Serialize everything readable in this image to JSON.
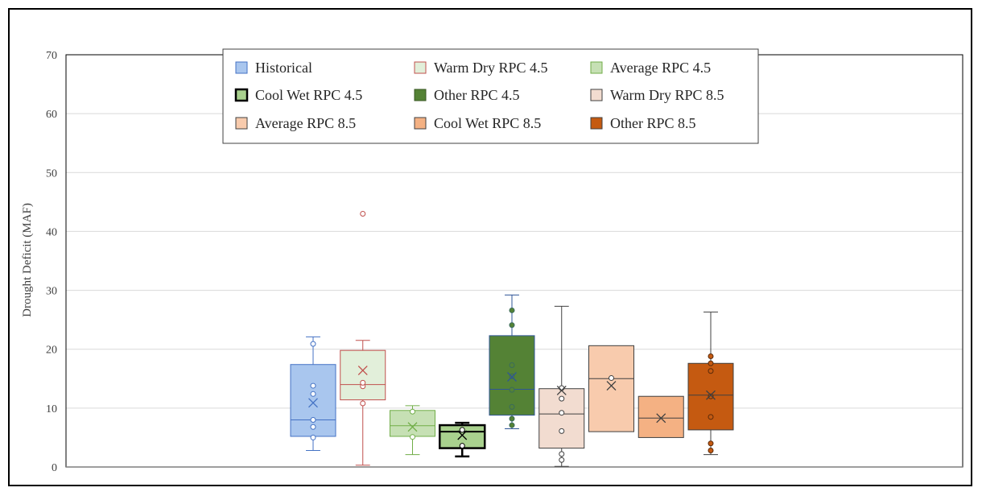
{
  "chart_data": {
    "type": "box",
    "title": "",
    "xlabel": "",
    "ylabel": "Drought Deficit (MAF)",
    "ylim": [
      0,
      70
    ],
    "yticks": [
      0,
      10,
      20,
      30,
      40,
      50,
      60,
      70
    ],
    "ytick_labels": [
      "0",
      "10",
      "20",
      "30",
      "40",
      "50",
      "60",
      "70"
    ],
    "grid": true,
    "legend_position": "top-center",
    "series": [
      {
        "name": "Historical",
        "fill": "#a9c6ee",
        "stroke": "#4472c4",
        "whisker_low": 2.8,
        "q1": 5.2,
        "median": 8.0,
        "q3": 17.4,
        "whisker_high": 22.1,
        "mean": 10.9,
        "points": [
          5.0,
          6.8,
          8.0,
          12.4,
          13.8,
          20.9
        ],
        "outliers": []
      },
      {
        "name": "Warm Dry RPC 4.5",
        "fill": "#e2efda",
        "stroke": "#c0504d",
        "whisker_low": 0.3,
        "q1": 11.4,
        "median": 14.0,
        "q3": 19.8,
        "whisker_high": 21.5,
        "mean": 16.4,
        "points": [
          10.8,
          13.7,
          14.3
        ],
        "outliers": [
          43.0
        ]
      },
      {
        "name": "Average RPC 4.5",
        "fill": "#c6e0b4",
        "stroke": "#70ad47",
        "whisker_low": 2.1,
        "q1": 5.2,
        "median": 7.0,
        "q3": 9.6,
        "whisker_high": 10.4,
        "mean": 6.8,
        "points": [
          5.1,
          9.4
        ],
        "outliers": []
      },
      {
        "name": "Cool Wet RPC 4.5",
        "fill": "#a9d18e",
        "stroke": "#000000",
        "whisker_low": 1.8,
        "q1": 3.2,
        "median": 6.0,
        "q3": 7.1,
        "whisker_high": 7.5,
        "mean": 5.4,
        "points": [
          3.6,
          6.3
        ],
        "outliers": []
      },
      {
        "name": "Other RPC 4.5",
        "fill": "#548235",
        "stroke": "#2f5597",
        "whisker_low": 6.5,
        "q1": 8.8,
        "median": 13.2,
        "q3": 22.3,
        "whisker_high": 29.2,
        "mean": 15.3,
        "points": [
          7.1,
          8.2,
          10.2,
          13.1,
          15.4,
          17.3,
          24.1,
          26.6
        ],
        "outliers": []
      },
      {
        "name": "Warm Dry RPC 8.5",
        "fill": "#f2dcd0",
        "stroke": "#404040",
        "whisker_low": 0.1,
        "q1": 3.2,
        "median": 9.0,
        "q3": 13.3,
        "whisker_high": 27.3,
        "mean": 13.0,
        "points": [
          1.2,
          2.2,
          6.1,
          9.2,
          11.6,
          13.4
        ],
        "outliers": []
      },
      {
        "name": "Average RPC 8.5",
        "fill": "#f8cbad",
        "stroke": "#404040",
        "whisker_low": 6.0,
        "q1": 6.0,
        "median": 15.0,
        "q3": 20.6,
        "whisker_high": 20.6,
        "mean": 13.8,
        "points": [
          15.1
        ],
        "outliers": []
      },
      {
        "name": "Cool Wet RPC 8.5",
        "fill": "#f4b183",
        "stroke": "#404040",
        "whisker_low": 5.0,
        "q1": 5.0,
        "median": 8.3,
        "q3": 12.0,
        "whisker_high": 12.0,
        "mean": 8.3,
        "points": [],
        "outliers": []
      },
      {
        "name": "Other RPC 8.5",
        "fill": "#c55a11",
        "stroke": "#404040",
        "whisker_low": 2.1,
        "q1": 6.3,
        "median": 12.2,
        "q3": 17.6,
        "whisker_high": 26.3,
        "mean": 12.2,
        "points": [
          2.8,
          4.0,
          8.5,
          12.0,
          16.3,
          17.6,
          18.8
        ],
        "outliers": []
      }
    ]
  },
  "legend": {
    "items": [
      {
        "label": "Historical",
        "fill": "#a9c6ee",
        "stroke": "#4472c4",
        "bold_border": false
      },
      {
        "label": "Warm Dry RPC 4.5",
        "fill": "#e2efda",
        "stroke": "#c0504d",
        "bold_border": false
      },
      {
        "label": "Average RPC 4.5",
        "fill": "#c6e0b4",
        "stroke": "#70ad47",
        "bold_border": false
      },
      {
        "label": "Cool Wet RPC 4.5",
        "fill": "#a9d18e",
        "stroke": "#000000",
        "bold_border": true
      },
      {
        "label": "Other RPC 4.5",
        "fill": "#548235",
        "stroke": "#385723",
        "bold_border": false
      },
      {
        "label": "Warm Dry RPC 8.5",
        "fill": "#f2dcd0",
        "stroke": "#404040",
        "bold_border": false
      },
      {
        "label": "Average RPC 8.5",
        "fill": "#f8cbad",
        "stroke": "#404040",
        "bold_border": false
      },
      {
        "label": "Cool Wet RPC 8.5",
        "fill": "#f4b183",
        "stroke": "#404040",
        "bold_border": false
      },
      {
        "label": "Other RPC 8.5",
        "fill": "#c55a11",
        "stroke": "#404040",
        "bold_border": false
      }
    ]
  },
  "colors": {
    "gridline": "#d9d9d9",
    "axis": "#7f7f7f",
    "frame": "#000000",
    "text": "#404040"
  }
}
